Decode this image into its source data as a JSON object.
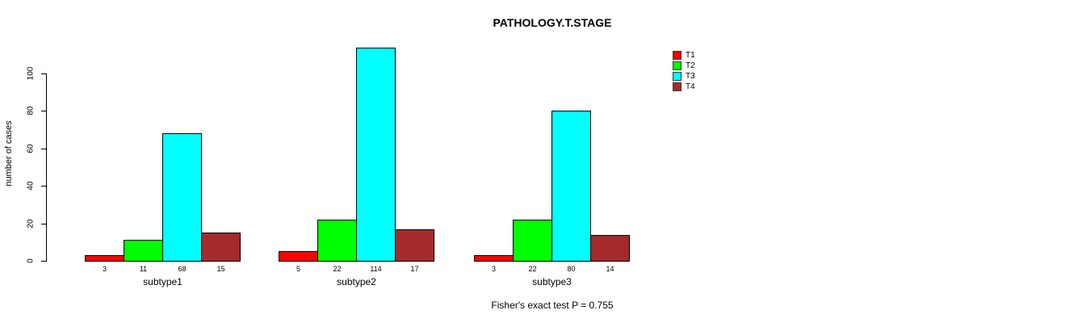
{
  "chart_data": {
    "type": "bar",
    "title": "PATHOLOGY.T.STAGE",
    "ylabel": "number of cases",
    "xlabel": "",
    "categories": [
      "subtype1",
      "subtype2",
      "subtype3"
    ],
    "series": [
      {
        "name": "T1",
        "color": "#FF0000",
        "values": [
          3,
          5,
          3
        ]
      },
      {
        "name": "T2",
        "color": "#00FF00",
        "values": [
          11,
          22,
          22
        ]
      },
      {
        "name": "T3",
        "color": "#00FFFF",
        "values": [
          68,
          114,
          80
        ]
      },
      {
        "name": "T4",
        "color": "#A52A2A",
        "values": [
          15,
          17,
          14
        ]
      }
    ],
    "yticks": [
      0,
      20,
      40,
      60,
      80,
      100
    ],
    "ylim": [
      0,
      115
    ],
    "grid": false,
    "bar_value_labels_shown": true,
    "legend_position": "top-right",
    "annotation": "Fisher's exact test P = 0.755"
  }
}
